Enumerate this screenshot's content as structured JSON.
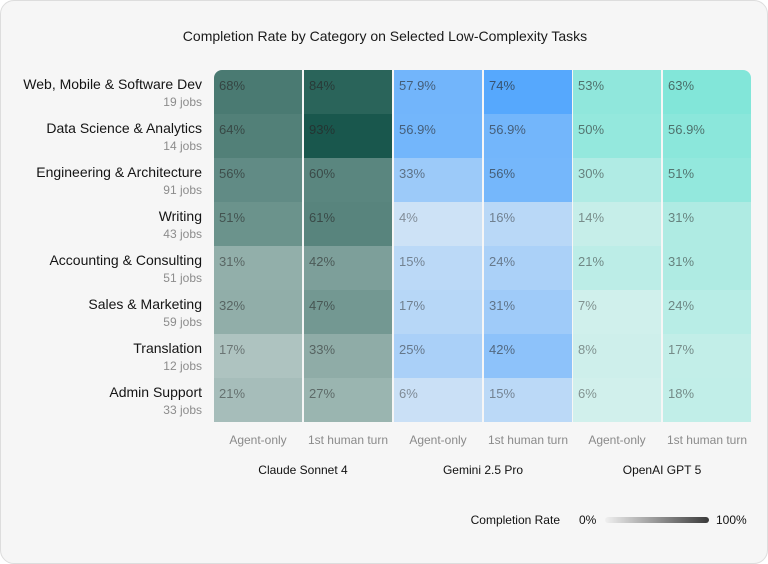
{
  "chart_data": {
    "type": "heatmap",
    "title": "Completion Rate by Category on Selected Low-Complexity Tasks",
    "rows": [
      {
        "category": "Web, Mobile & Software Dev",
        "jobs": "19 jobs"
      },
      {
        "category": "Data Science & Analytics",
        "jobs": "14 jobs"
      },
      {
        "category": "Engineering & Architecture",
        "jobs": "91 jobs"
      },
      {
        "category": "Writing",
        "jobs": "43 jobs"
      },
      {
        "category": "Accounting & Consulting",
        "jobs": "51 jobs"
      },
      {
        "category": "Sales & Marketing",
        "jobs": "59 jobs"
      },
      {
        "category": "Translation",
        "jobs": "12 jobs"
      },
      {
        "category": "Admin Support",
        "jobs": "33 jobs"
      }
    ],
    "groups": [
      {
        "name": "Claude Sonnet 4",
        "color": "#0b4d42"
      },
      {
        "name": "Gemini 2.5 Pro",
        "color": "#2a92ff"
      },
      {
        "name": "OpenAI GPT 5",
        "color": "#4fdfcc"
      }
    ],
    "columns": [
      {
        "label": "Agent-only",
        "group": 0
      },
      {
        "label": "1st human turn",
        "group": 0
      },
      {
        "label": "Agent-only",
        "group": 1
      },
      {
        "label": "1st human turn",
        "group": 1
      },
      {
        "label": "Agent-only",
        "group": 2
      },
      {
        "label": "1st human turn",
        "group": 2
      }
    ],
    "values": [
      [
        "68%",
        "84%",
        "57.9%",
        "74%",
        "53%",
        "63%"
      ],
      [
        "64%",
        "93%",
        "56.9%",
        "56.9%",
        "50%",
        "56.9%"
      ],
      [
        "56%",
        "60%",
        "33%",
        "56%",
        "30%",
        "51%"
      ],
      [
        "51%",
        "61%",
        "4%",
        "16%",
        "14%",
        "31%"
      ],
      [
        "31%",
        "42%",
        "15%",
        "24%",
        "21%",
        "31%"
      ],
      [
        "32%",
        "47%",
        "17%",
        "31%",
        "7%",
        "24%"
      ],
      [
        "17%",
        "33%",
        "25%",
        "42%",
        "8%",
        "17%"
      ],
      [
        "21%",
        "27%",
        "6%",
        "15%",
        "6%",
        "18%"
      ]
    ],
    "legend": {
      "title": "Completion Rate",
      "min": "0%",
      "max": "100%"
    }
  }
}
